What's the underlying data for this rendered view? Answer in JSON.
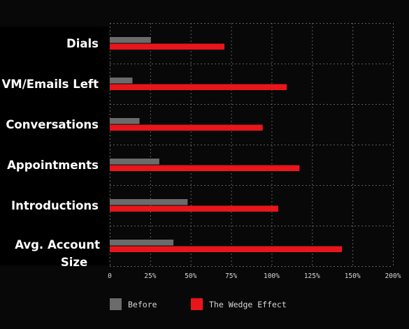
{
  "chart_data": {
    "type": "bar",
    "orientation": "horizontal",
    "categories": [
      "Dials",
      "VM/Emails Left",
      "Conversations",
      "Appointments",
      "Introductions",
      "Avg. Account Size"
    ],
    "series": [
      {
        "name": "Before",
        "color": "#6b6b6b",
        "values": [
          29,
          16,
          21,
          35,
          55,
          45
        ]
      },
      {
        "name": "The Wedge Effect",
        "color": "#e8161b",
        "values": [
          81,
          125,
          108,
          134,
          119,
          164
        ]
      }
    ],
    "xlim": [
      0,
      200
    ],
    "xticks": [
      "0",
      "25%",
      "50%",
      "75%",
      "100%",
      "125%",
      "150%",
      "200%"
    ],
    "grid": true,
    "legend": "bottom-left"
  }
}
